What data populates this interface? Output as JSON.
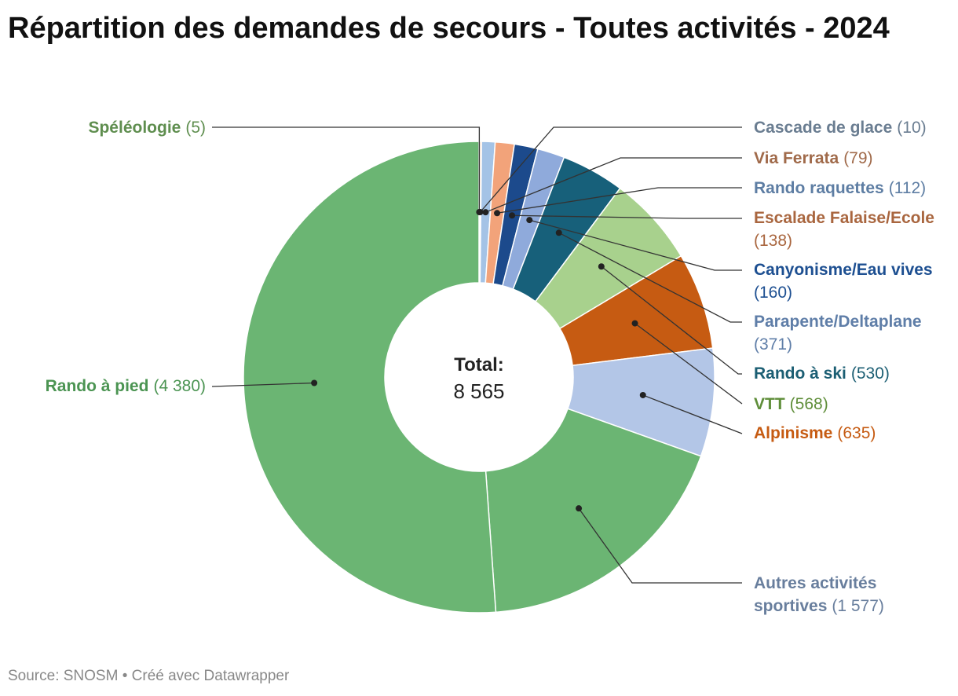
{
  "title": "Répartition des demandes de secours - Toutes activités - 2024",
  "footer": {
    "source": "Source: SNOSM",
    "separator": " • ",
    "credit": "Créé avec Datawrapper"
  },
  "chart_data": {
    "type": "pie",
    "variant": "donut",
    "title": "Répartition des demandes de secours - Toutes activités - 2024",
    "center_label": "Total:",
    "center_value": "8 565",
    "start_angle_deg": 0,
    "direction": "clockwise",
    "slices": [
      {
        "name": "Spéléologie",
        "value": 5,
        "value_label": "5",
        "color": "#f9c9a8",
        "label_color": "#5f8e4f"
      },
      {
        "name": "Cascade de glace",
        "value": 10,
        "value_label": "10",
        "color": "#f9c9a8",
        "label_color": "#6a7d91"
      },
      {
        "name": "Via Ferrata",
        "value": 79,
        "value_label": "79",
        "color": "#a4c3e6",
        "label_color": "#a06a4a"
      },
      {
        "name": "Rando raquettes",
        "value": 112,
        "value_label": "112",
        "color": "#f2a37a",
        "label_color": "#5d7da3"
      },
      {
        "name": "Escalade Falaise/Ecole",
        "value": 138,
        "value_label": "138",
        "color": "#1c4a8c",
        "label_color": "#a9663f"
      },
      {
        "name": "Canyonisme/Eau vives",
        "value": 160,
        "value_label": "160",
        "color": "#8faadb",
        "label_color": "#1d4f91"
      },
      {
        "name": "Parapente/Deltaplane",
        "value": 371,
        "value_label": "371",
        "color": "#17607a",
        "label_color": "#5f7ea8"
      },
      {
        "name": "Rando à ski",
        "value": 530,
        "value_label": "530",
        "color": "#a8d18d",
        "label_color": "#1b5e73"
      },
      {
        "name": "VTT",
        "value": 568,
        "value_label": "568",
        "color": "#c65b12",
        "label_color": "#5f8e3a"
      },
      {
        "name": "Alpinisme",
        "value": 635,
        "value_label": "635",
        "color": "#b3c6e7",
        "label_color": "#c65b12"
      },
      {
        "name": "Autres activités sportives",
        "value": 1577,
        "value_label": "1 577",
        "color": "#6bb573",
        "label_color": "#687e9d"
      },
      {
        "name": "Rando à pied",
        "value": 4380,
        "value_label": "4 380",
        "color": "#6bb573",
        "label_color": "#4b9452"
      }
    ]
  }
}
